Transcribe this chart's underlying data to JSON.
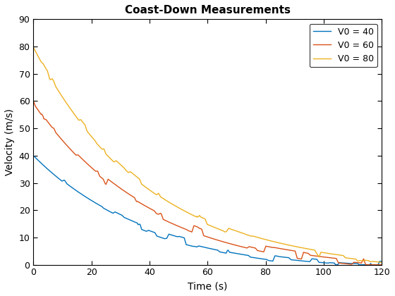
{
  "title": "Coast-Down Measurements",
  "xlabel": "Time (s)",
  "ylabel": "Velocity (m/s)",
  "xlim": [
    0,
    120
  ],
  "ylim": [
    0,
    90
  ],
  "xticks": [
    0,
    20,
    40,
    60,
    80,
    100,
    120
  ],
  "yticks": [
    0,
    10,
    20,
    30,
    40,
    50,
    60,
    70,
    80,
    90
  ],
  "series": [
    {
      "V0": 40,
      "color": "#0072BD",
      "label": "V0 = 40",
      "seed": 10
    },
    {
      "V0": 60,
      "color": "#D95319",
      "label": "V0 = 60",
      "seed": 20
    },
    {
      "V0": 80,
      "color": "#EDB120",
      "label": "V0 = 80",
      "seed": 30
    }
  ],
  "drag_a": 0.07,
  "drag_b": 0.025,
  "t_end": 120,
  "n_points": 500,
  "noise_amplitude": 1.5,
  "noise_steps": 40,
  "legend_loc": "upper right",
  "title_fontsize": 11,
  "label_fontsize": 10,
  "tick_fontsize": 9,
  "legend_fontsize": 9,
  "linewidth": 1.0,
  "background_color": "#ffffff",
  "axes_edgecolor": "#000000"
}
